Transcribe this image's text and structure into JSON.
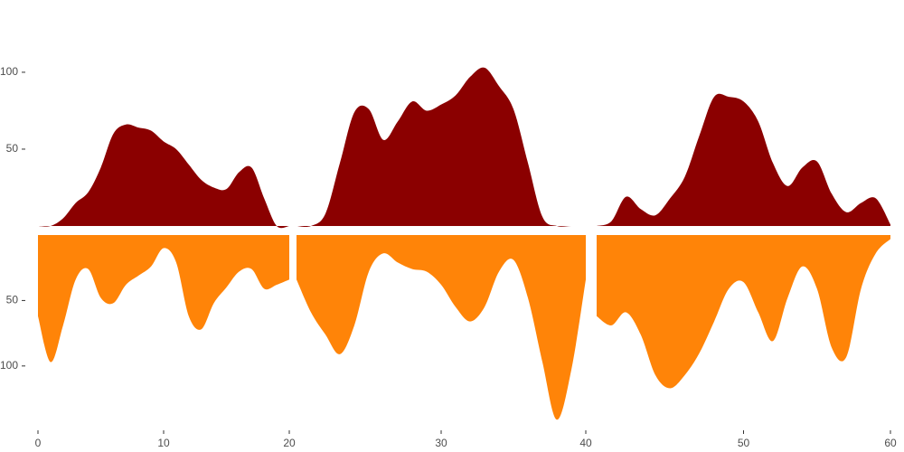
{
  "chart_data": [
    {
      "type": "mirror-area",
      "xlim": [
        0,
        20
      ],
      "xticks": [
        0,
        10,
        20
      ],
      "ylim": [
        0,
        147
      ],
      "yticks": [
        50,
        100
      ],
      "y2lim": [
        0,
        145
      ],
      "y2ticks": [
        50,
        100
      ],
      "x": [
        0,
        1,
        2,
        3,
        4,
        5,
        6,
        7,
        8,
        9,
        10,
        11,
        12,
        13,
        14,
        15,
        16,
        17,
        18,
        19,
        20
      ],
      "series": [
        {
          "color": "#8b0000",
          "values": [
            0,
            0,
            5,
            15,
            22,
            38,
            60,
            66,
            64,
            62,
            55,
            50,
            40,
            30,
            25,
            24,
            35,
            38,
            18,
            0,
            0
          ]
        },
        {
          "color": "#ff8408",
          "axis": "y2",
          "values": [
            62,
            97,
            69,
            34,
            26,
            48,
            52,
            38,
            31,
            24,
            10,
            21,
            62,
            72,
            52,
            40,
            28,
            26,
            41,
            38,
            34
          ]
        }
      ]
    },
    {
      "type": "mirror-area",
      "xlim": [
        20,
        40
      ],
      "xticks": [
        30,
        40
      ],
      "ylim": [
        0,
        147
      ],
      "y2lim": [
        0,
        145
      ],
      "x": [
        20,
        21,
        22,
        23,
        24,
        25,
        26,
        27,
        28,
        29,
        30,
        31,
        32,
        33,
        34,
        35,
        36,
        37,
        38,
        39,
        40
      ],
      "series": [
        {
          "color": "#8b0000",
          "values": [
            0,
            0,
            8,
            41,
            74,
            76,
            56,
            68,
            81,
            75,
            79,
            85,
            97,
            103,
            91,
            76,
            41,
            6,
            0,
            0,
            0
          ]
        },
        {
          "color": "#ff8408",
          "axis": "y2",
          "values": [
            34,
            59,
            76,
            91,
            69,
            28,
            14,
            21,
            26,
            28,
            38,
            55,
            66,
            55,
            28,
            19,
            48,
            97,
            141,
            103,
            34
          ]
        }
      ]
    },
    {
      "type": "mirror-area",
      "xlim": [
        40,
        60
      ],
      "xticks": [
        50,
        60
      ],
      "ylim": [
        0,
        147
      ],
      "y2lim": [
        0,
        145
      ],
      "x": [
        40,
        41,
        42,
        43,
        44,
        45,
        46,
        47,
        48,
        49,
        50,
        51,
        52,
        53,
        54,
        55,
        56,
        57,
        58,
        59,
        60
      ],
      "series": [
        {
          "color": "#8b0000",
          "values": [
            0,
            3,
            19,
            11,
            7,
            18,
            32,
            59,
            84,
            84,
            81,
            68,
            41,
            26,
            38,
            42,
            21,
            9,
            15,
            18,
            1
          ]
        },
        {
          "color": "#ff8408",
          "axis": "y2",
          "values": [
            62,
            69,
            59,
            76,
            107,
            117,
            107,
            90,
            66,
            41,
            36,
            59,
            81,
            48,
            24,
            41,
            86,
            93,
            41,
            14,
            3
          ]
        }
      ]
    }
  ]
}
